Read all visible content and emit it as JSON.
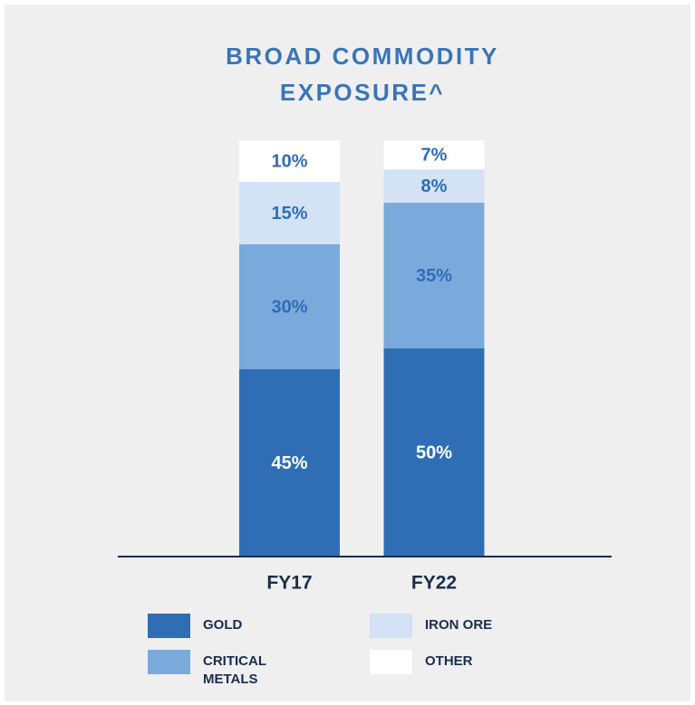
{
  "chart_data": {
    "type": "stacked_bar",
    "title": "BROAD COMMODITY EXPOSURE^",
    "categories": [
      "FY17",
      "FY22"
    ],
    "ylim": [
      0,
      100
    ],
    "series": [
      {
        "name": "GOLD",
        "color": "#2f6db5",
        "values": [
          45,
          50
        ],
        "value_labels": [
          "45%",
          "50%"
        ]
      },
      {
        "name": "CRITICAL METALS",
        "color": "#7aaadc",
        "values": [
          30,
          35
        ],
        "value_labels": [
          "30%",
          "35%"
        ]
      },
      {
        "name": "IRON ORE",
        "color": "#d3e2f5",
        "values": [
          15,
          8
        ],
        "value_labels": [
          "15%",
          "8%"
        ]
      },
      {
        "name": "OTHER",
        "color": "#ffffff",
        "values": [
          10,
          7
        ],
        "value_labels": [
          "10%",
          "7%"
        ]
      }
    ]
  }
}
